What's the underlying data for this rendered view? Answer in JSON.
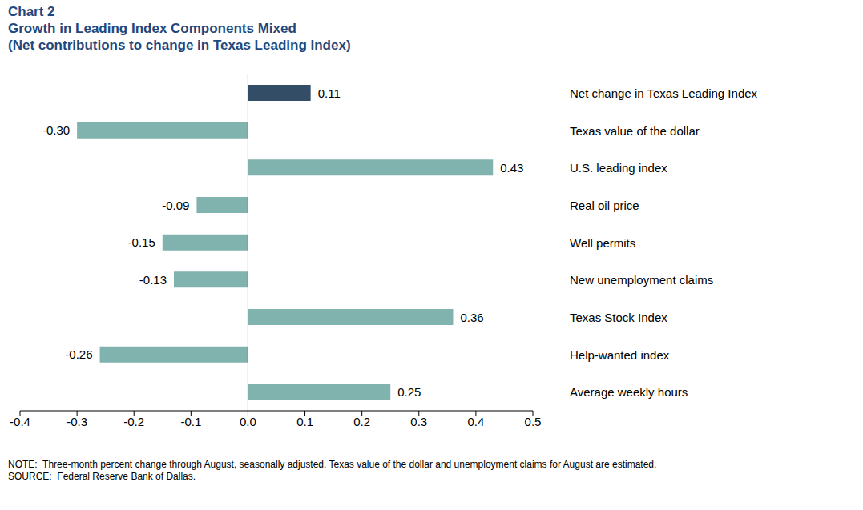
{
  "chart_data": {
    "type": "bar",
    "orientation": "horizontal",
    "title": "Chart 2",
    "subtitle": [
      "Growth in Leading Index Components Mixed",
      "(Net contributions to change in Texas Leading Index)"
    ],
    "categories": [
      "Net change in Texas Leading Index",
      "Texas value of the dollar",
      "U.S. leading index",
      "Real oil price",
      "Well permits",
      "New unemployment claims",
      "Texas Stock Index",
      "Help-wanted index",
      "Average weekly hours"
    ],
    "values": [
      0.11,
      -0.3,
      0.43,
      -0.09,
      -0.15,
      -0.13,
      0.36,
      -0.26,
      0.25
    ],
    "value_labels": [
      "0.11",
      "-0.30",
      "0.43",
      "-0.09",
      "-0.15",
      "-0.13",
      "0.36",
      "-0.26",
      "0.25"
    ],
    "colors": [
      "#344d66",
      "#80b3ae",
      "#80b3ae",
      "#80b3ae",
      "#80b3ae",
      "#80b3ae",
      "#80b3ae",
      "#80b3ae",
      "#80b3ae"
    ],
    "xlim": [
      -0.4,
      0.5
    ],
    "xticks": [
      -0.4,
      -0.3,
      -0.2,
      -0.1,
      {
        "value": 0,
        "label": "0.0"
      },
      0.1,
      0.2,
      0.3,
      0.4,
      0.5
    ],
    "data_labels": true,
    "grid": false,
    "annotations": [
      "NOTE:  Three-month percent change through August, seasonally adjusted. Texas value of the dollar and unemployment claims for August are estimated.",
      "SOURCE:  Federal Reserve Bank of Dallas."
    ]
  }
}
